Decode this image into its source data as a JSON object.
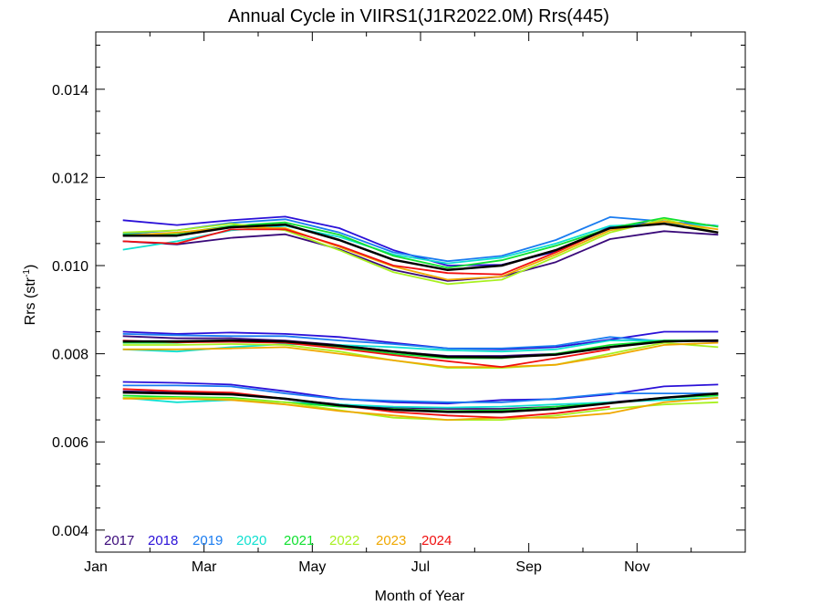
{
  "chart_data": {
    "type": "line",
    "title": "Annual Cycle in VIIRS1(J1R2022.0M) Rrs(445)",
    "xlabel": "Month of Year",
    "ylabel_main": "Rrs (str",
    "ylabel_sup": "-1",
    "ylabel_close": ")",
    "xlim": [
      0,
      12
    ],
    "ylim": [
      0.0035,
      0.0153
    ],
    "x_ticks": [
      {
        "value": 0,
        "label": "Jan"
      },
      {
        "value": 2,
        "label": "Mar"
      },
      {
        "value": 4,
        "label": "May"
      },
      {
        "value": 6,
        "label": "Jul"
      },
      {
        "value": 8,
        "label": "Sep"
      },
      {
        "value": 10,
        "label": "Nov"
      }
    ],
    "y_ticks": [
      {
        "value": 0.004,
        "label": "0.004"
      },
      {
        "value": 0.006,
        "label": "0.006"
      },
      {
        "value": 0.008,
        "label": "0.008"
      },
      {
        "value": 0.01,
        "label": "0.010"
      },
      {
        "value": 0.012,
        "label": "0.012"
      },
      {
        "value": 0.014,
        "label": "0.014"
      }
    ],
    "x": [
      0.5,
      1.5,
      2.5,
      3.5,
      4.5,
      5.5,
      6.5,
      7.5,
      8.5,
      9.5,
      10.5,
      11.5
    ],
    "legend": {
      "placement": "bottom-left",
      "entries": [
        "2017",
        "2018",
        "2019",
        "2020",
        "2021",
        "2022",
        "2023",
        "2024"
      ]
    },
    "grid": false,
    "series": [
      {
        "name": "2017",
        "color": "#3a0a7a",
        "groups": [
          [
            0.01055,
            0.01048,
            0.01063,
            0.01071,
            0.01037,
            0.0099,
            0.00965,
            0.00975,
            0.01008,
            0.0106,
            0.01078,
            0.0107
          ],
          [
            0.0084,
            0.00835,
            0.00835,
            0.0083,
            0.0082,
            0.00805,
            0.00795,
            0.00795,
            0.008,
            0.00815,
            0.0083,
            0.00828
          ],
          [
            0.00715,
            0.00712,
            0.0071,
            0.00697,
            0.00685,
            0.00678,
            0.00675,
            0.00675,
            0.0068,
            0.0069,
            0.007,
            0.00707
          ]
        ]
      },
      {
        "name": "2018",
        "color": "#2a10d8",
        "groups": [
          [
            0.01103,
            0.01092,
            0.01103,
            0.01111,
            0.01085,
            0.01035,
            0.01,
            0.01002,
            0.01032,
            0.01088,
            0.011,
            0.0109
          ],
          [
            0.0085,
            0.00845,
            0.00848,
            0.00845,
            0.00838,
            0.00825,
            0.00812,
            0.0081,
            0.00815,
            0.00832,
            0.0085,
            0.0085
          ],
          [
            0.00736,
            0.00734,
            0.0073,
            0.00715,
            0.00698,
            0.0069,
            0.00687,
            0.00695,
            0.00697,
            0.00708,
            0.00726,
            0.0073
          ]
        ]
      },
      {
        "name": "2019",
        "color": "#1a7cf0",
        "groups": [
          [
            0.01072,
            0.0108,
            0.01097,
            0.01105,
            0.01075,
            0.0103,
            0.0101,
            0.01022,
            0.01058,
            0.0111,
            0.011,
            0.0109
          ],
          [
            0.00845,
            0.00842,
            0.0084,
            0.0084,
            0.0083,
            0.00822,
            0.00812,
            0.00812,
            0.00818,
            0.00838,
            0.00828,
            0.0083
          ],
          [
            0.00728,
            0.00728,
            0.00726,
            0.0071,
            0.00697,
            0.00693,
            0.0069,
            0.0069,
            0.00698,
            0.0071,
            0.0071,
            0.0071
          ]
        ]
      },
      {
        "name": "2020",
        "color": "#10e0d0",
        "groups": [
          [
            0.01036,
            0.01055,
            0.0108,
            0.0109,
            0.01065,
            0.01025,
            0.01005,
            0.01018,
            0.0105,
            0.0109,
            0.01095,
            0.0109
          ],
          [
            0.0081,
            0.00805,
            0.00815,
            0.00822,
            0.0082,
            0.00815,
            0.00808,
            0.00805,
            0.0081,
            0.0083,
            0.0083,
            0.0083
          ],
          [
            0.007,
            0.0069,
            0.00695,
            0.0069,
            0.00685,
            0.0068,
            0.00678,
            0.0068,
            0.00685,
            0.0069,
            0.00695,
            0.007
          ]
        ]
      },
      {
        "name": "2021",
        "color": "#10e030",
        "groups": [
          [
            0.0107,
            0.01073,
            0.0109,
            0.01098,
            0.0107,
            0.01022,
            0.00995,
            0.01012,
            0.01045,
            0.01085,
            0.01108,
            0.01088
          ],
          [
            0.00825,
            0.00825,
            0.0083,
            0.00828,
            0.00815,
            0.008,
            0.0079,
            0.0079,
            0.008,
            0.0082,
            0.0083,
            0.0083
          ],
          [
            0.00705,
            0.00702,
            0.007,
            0.0069,
            0.0068,
            0.00675,
            0.0067,
            0.00672,
            0.0068,
            0.00688,
            0.007,
            0.00705
          ]
        ]
      },
      {
        "name": "2022",
        "color": "#a8f020",
        "groups": [
          [
            0.01075,
            0.0108,
            0.01095,
            0.0108,
            0.01035,
            0.00985,
            0.00958,
            0.00968,
            0.0102,
            0.01075,
            0.01105,
            0.01075
          ],
          [
            0.0082,
            0.0082,
            0.00822,
            0.0082,
            0.00805,
            0.00785,
            0.00768,
            0.00768,
            0.00775,
            0.008,
            0.00825,
            0.00815
          ],
          [
            0.007,
            0.007,
            0.00698,
            0.0069,
            0.00672,
            0.00655,
            0.0065,
            0.0065,
            0.0066,
            0.00675,
            0.00685,
            0.0069
          ]
        ]
      },
      {
        "name": "2023",
        "color": "#f0a800",
        "groups": [
          [
            0.01068,
            0.01075,
            0.01087,
            0.01085,
            0.01042,
            0.00998,
            0.00968,
            0.00975,
            0.01025,
            0.0108,
            0.011,
            0.01082
          ],
          [
            0.0081,
            0.0081,
            0.00812,
            0.00815,
            0.008,
            0.00785,
            0.0077,
            0.0077,
            0.00775,
            0.00795,
            0.0082,
            0.00825
          ],
          [
            0.00698,
            0.00698,
            0.00695,
            0.00685,
            0.0067,
            0.0066,
            0.0065,
            0.00655,
            0.00655,
            0.00665,
            0.0069,
            0.007
          ]
        ]
      },
      {
        "name": "2024",
        "color": "#f01010",
        "groups": [
          [
            0.01055,
            0.0105,
            0.01082,
            0.01082,
            0.01045,
            0.01,
            0.00983,
            0.0098,
            0.0103,
            0.01085
          ],
          [
            0.0083,
            0.00826,
            0.00827,
            0.00825,
            0.00812,
            0.00797,
            0.00783,
            0.0077,
            0.0079,
            0.0081
          ],
          [
            0.0072,
            0.00715,
            0.00712,
            0.00698,
            0.00683,
            0.00668,
            0.0066,
            0.00655,
            0.00665,
            0.0068
          ]
        ]
      },
      {
        "color": "#000000",
        "groups": [
          [
            0.01068,
            0.01068,
            0.01087,
            0.01093,
            0.01058,
            0.01013,
            0.0099,
            0.01,
            0.01035,
            0.01085,
            0.01095,
            0.01075
          ],
          [
            0.00828,
            0.00828,
            0.0083,
            0.00828,
            0.00818,
            0.00805,
            0.00793,
            0.00792,
            0.00798,
            0.00815,
            0.00828,
            0.0083
          ],
          [
            0.00712,
            0.0071,
            0.00708,
            0.00698,
            0.00683,
            0.00673,
            0.00668,
            0.00668,
            0.00675,
            0.00688,
            0.007,
            0.0071
          ]
        ]
      }
    ]
  }
}
